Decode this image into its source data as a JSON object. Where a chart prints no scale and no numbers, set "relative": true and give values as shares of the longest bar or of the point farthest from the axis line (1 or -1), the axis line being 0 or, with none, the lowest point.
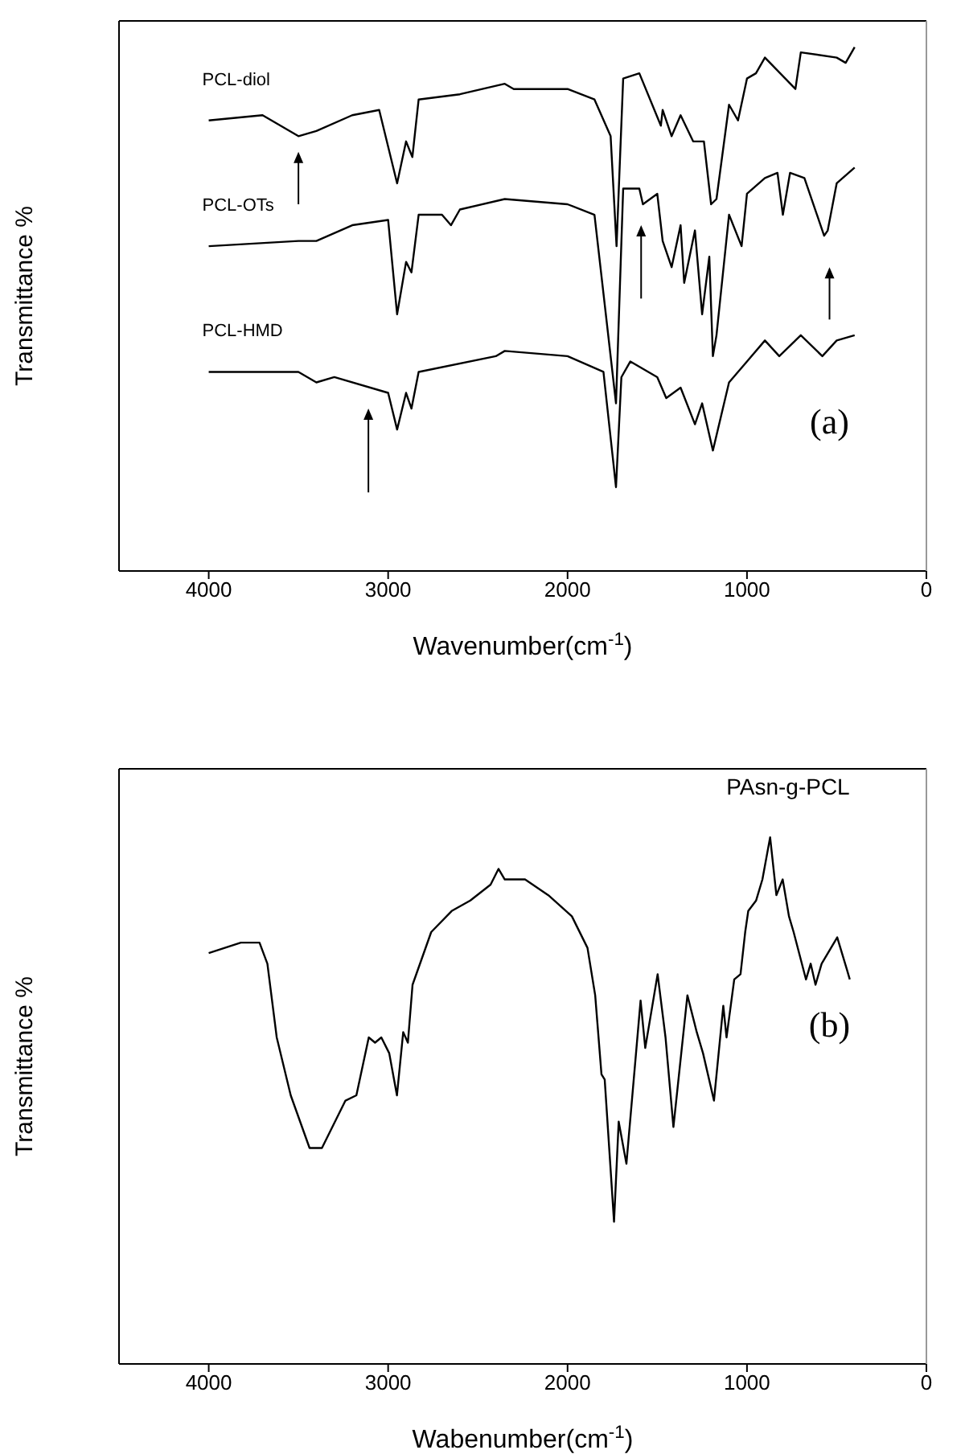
{
  "chart_data": [
    {
      "type": "line",
      "xlabel": "Wavenumber(cm$^{-1}$)",
      "ylabel": "Transmittance %",
      "relative": true,
      "xlim": [
        4500,
        0
      ],
      "xticks": [
        4000,
        3000,
        2000,
        1000,
        0
      ],
      "annotations": [
        "(a)"
      ],
      "marker": "none",
      "line_style": "solid",
      "series": [
        {
          "name": "PCL-diol",
          "color": "#000000",
          "x": [
            4000,
            3700,
            3500,
            3400,
            3200,
            3050,
            2950,
            2900,
            2865,
            2830,
            2600,
            2350,
            2300,
            2000,
            1850,
            1760,
            1727,
            1690,
            1600,
            1480,
            1470,
            1420,
            1370,
            1300,
            1240,
            1200,
            1170,
            1100,
            1050,
            1000,
            950,
            900,
            730,
            700,
            500,
            450,
            400
          ],
          "values": [
            0.86,
            0.87,
            0.83,
            0.84,
            0.87,
            0.88,
            0.74,
            0.82,
            0.79,
            0.9,
            0.91,
            0.93,
            0.92,
            0.92,
            0.9,
            0.83,
            0.62,
            0.94,
            0.95,
            0.85,
            0.88,
            0.83,
            0.87,
            0.82,
            0.82,
            0.7,
            0.71,
            0.89,
            0.86,
            0.94,
            0.95,
            0.98,
            0.92,
            0.99,
            0.98,
            0.97,
            1.0
          ]
        },
        {
          "name": "PCL-OTs",
          "color": "#000000",
          "x": [
            4000,
            3500,
            3400,
            3200,
            3000,
            2950,
            2900,
            2870,
            2830,
            2700,
            2650,
            2600,
            2350,
            2000,
            1850,
            1730,
            1690,
            1600,
            1580,
            1500,
            1470,
            1420,
            1370,
            1350,
            1290,
            1250,
            1210,
            1190,
            1170,
            1100,
            1030,
            1000,
            900,
            830,
            800,
            760,
            680,
            570,
            550,
            500,
            400
          ],
          "values": [
            0.62,
            0.63,
            0.63,
            0.66,
            0.67,
            0.49,
            0.59,
            0.57,
            0.68,
            0.68,
            0.66,
            0.69,
            0.71,
            0.7,
            0.68,
            0.32,
            0.73,
            0.73,
            0.7,
            0.72,
            0.63,
            0.58,
            0.66,
            0.55,
            0.65,
            0.49,
            0.6,
            0.41,
            0.45,
            0.68,
            0.62,
            0.72,
            0.75,
            0.76,
            0.68,
            0.76,
            0.75,
            0.64,
            0.65,
            0.74,
            0.77
          ]
        },
        {
          "name": "PCL-HMD",
          "color": "#000000",
          "x": [
            4000,
            3500,
            3400,
            3300,
            3000,
            2950,
            2900,
            2870,
            2830,
            2400,
            2350,
            2000,
            1800,
            1730,
            1700,
            1650,
            1500,
            1450,
            1370,
            1290,
            1250,
            1190,
            1100,
            1000,
            900,
            820,
            700,
            580,
            500,
            400
          ],
          "values": [
            0.38,
            0.38,
            0.36,
            0.37,
            0.34,
            0.27,
            0.34,
            0.31,
            0.38,
            0.41,
            0.42,
            0.41,
            0.38,
            0.16,
            0.37,
            0.4,
            0.37,
            0.33,
            0.35,
            0.28,
            0.32,
            0.23,
            0.36,
            0.4,
            0.44,
            0.41,
            0.45,
            0.41,
            0.44,
            0.45
          ]
        }
      ]
    },
    {
      "type": "line",
      "xlabel": "Wabenumber(cm$^{-1}$)",
      "ylabel": "Transmittance %",
      "relative": true,
      "xlim": [
        4500,
        0
      ],
      "xticks": [
        4000,
        3000,
        2000,
        1000,
        0
      ],
      "annotations": [
        "(b)"
      ],
      "marker": "none",
      "line_style": "solid",
      "series": [
        {
          "name": "PAsn-g-PCL",
          "color": "#000000",
          "x": [
            4000,
            3821,
            3717,
            3673,
            3621,
            3543,
            3438,
            3369,
            3238,
            3177,
            3108,
            3073,
            3038,
            2994,
            2951,
            2916,
            2890,
            2864,
            2760,
            2646,
            2542,
            2429,
            2385,
            2350,
            2237,
            2107,
            1976,
            1889,
            1846,
            1811,
            1793,
            1741,
            1715,
            1672,
            1593,
            1567,
            1498,
            1454,
            1410,
            1332,
            1280,
            1245,
            1184,
            1132,
            1114,
            1071,
            1036,
            1010,
            993,
            949,
            914,
            871,
            836,
            801,
            766,
            740,
            671,
            645,
            618,
            584,
            497,
            444,
            427
          ],
          "values": [
            0.78,
            0.8,
            0.8,
            0.76,
            0.62,
            0.51,
            0.41,
            0.41,
            0.5,
            0.51,
            0.62,
            0.61,
            0.62,
            0.59,
            0.51,
            0.63,
            0.61,
            0.72,
            0.82,
            0.86,
            0.88,
            0.91,
            0.94,
            0.92,
            0.92,
            0.89,
            0.85,
            0.79,
            0.7,
            0.55,
            0.54,
            0.27,
            0.46,
            0.38,
            0.69,
            0.6,
            0.74,
            0.62,
            0.45,
            0.7,
            0.63,
            0.59,
            0.5,
            0.68,
            0.62,
            0.73,
            0.74,
            0.82,
            0.86,
            0.88,
            0.92,
            1.0,
            0.89,
            0.92,
            0.85,
            0.82,
            0.73,
            0.76,
            0.72,
            0.76,
            0.81,
            0.75,
            0.73
          ]
        }
      ]
    }
  ]
}
